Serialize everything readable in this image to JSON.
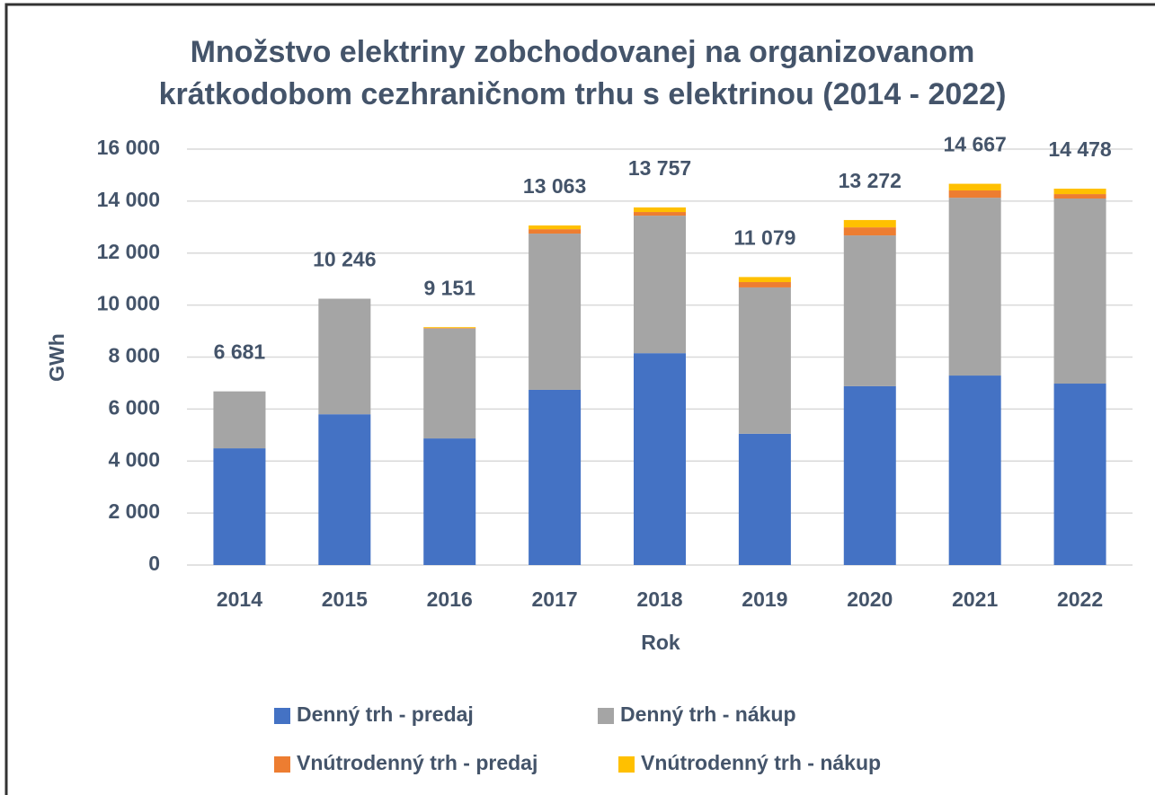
{
  "chart_data": {
    "type": "stacked-bar",
    "title": [
      "Množstvo elektriny zobchodovanej na organizovanom",
      "krátkodobom cezhraničnom trhu s elektrinou (2014 - 2022)"
    ],
    "xlabel": "Rok",
    "ylabel": "GWh",
    "categories": [
      "2014",
      "2015",
      "2016",
      "2017",
      "2018",
      "2019",
      "2020",
      "2021",
      "2022"
    ],
    "series": [
      {
        "name": "Denný trh - predaj",
        "color": "#4472c4",
        "values": [
          4490,
          5800,
          4870,
          6740,
          8150,
          5050,
          6880,
          7290,
          6980
        ]
      },
      {
        "name": "Denný trh - nákup",
        "color": "#a5a5a5",
        "values": [
          2191,
          4446,
          4230,
          6010,
          5290,
          5630,
          5800,
          6840,
          7120
        ]
      },
      {
        "name": "Vnútrodenný trh - predaj",
        "color": "#ed7d31",
        "values": [
          0,
          0,
          20,
          170,
          140,
          205,
          310,
          280,
          170
        ]
      },
      {
        "name": "Vnútrodenný trh - nákup",
        "color": "#ffc000",
        "values": [
          0,
          0,
          31,
          143,
          177,
          194,
          282,
          257,
          208
        ]
      }
    ],
    "totals": [
      6681,
      10246,
      9151,
      13063,
      13757,
      11079,
      13272,
      14667,
      14478
    ],
    "total_labels": [
      "6 681",
      "10 246",
      "9 151",
      "13 063",
      "13 757",
      "11 079",
      "13 272",
      "14 667",
      "14 478"
    ],
    "ylim": [
      0,
      16000
    ],
    "yticks": [
      0,
      {
        "value": 2000,
        "label": "2 000"
      },
      {
        "value": 4000,
        "label": "4 000"
      },
      {
        "value": 6000,
        "label": "6 000"
      },
      {
        "value": 8000,
        "label": "8 000"
      },
      {
        "value": 10000,
        "label": "10 000"
      },
      {
        "value": 12000,
        "label": "12 000"
      },
      {
        "value": 14000,
        "label": "14 000"
      },
      {
        "value": 16000,
        "label": "16 000"
      }
    ],
    "grid": true
  }
}
